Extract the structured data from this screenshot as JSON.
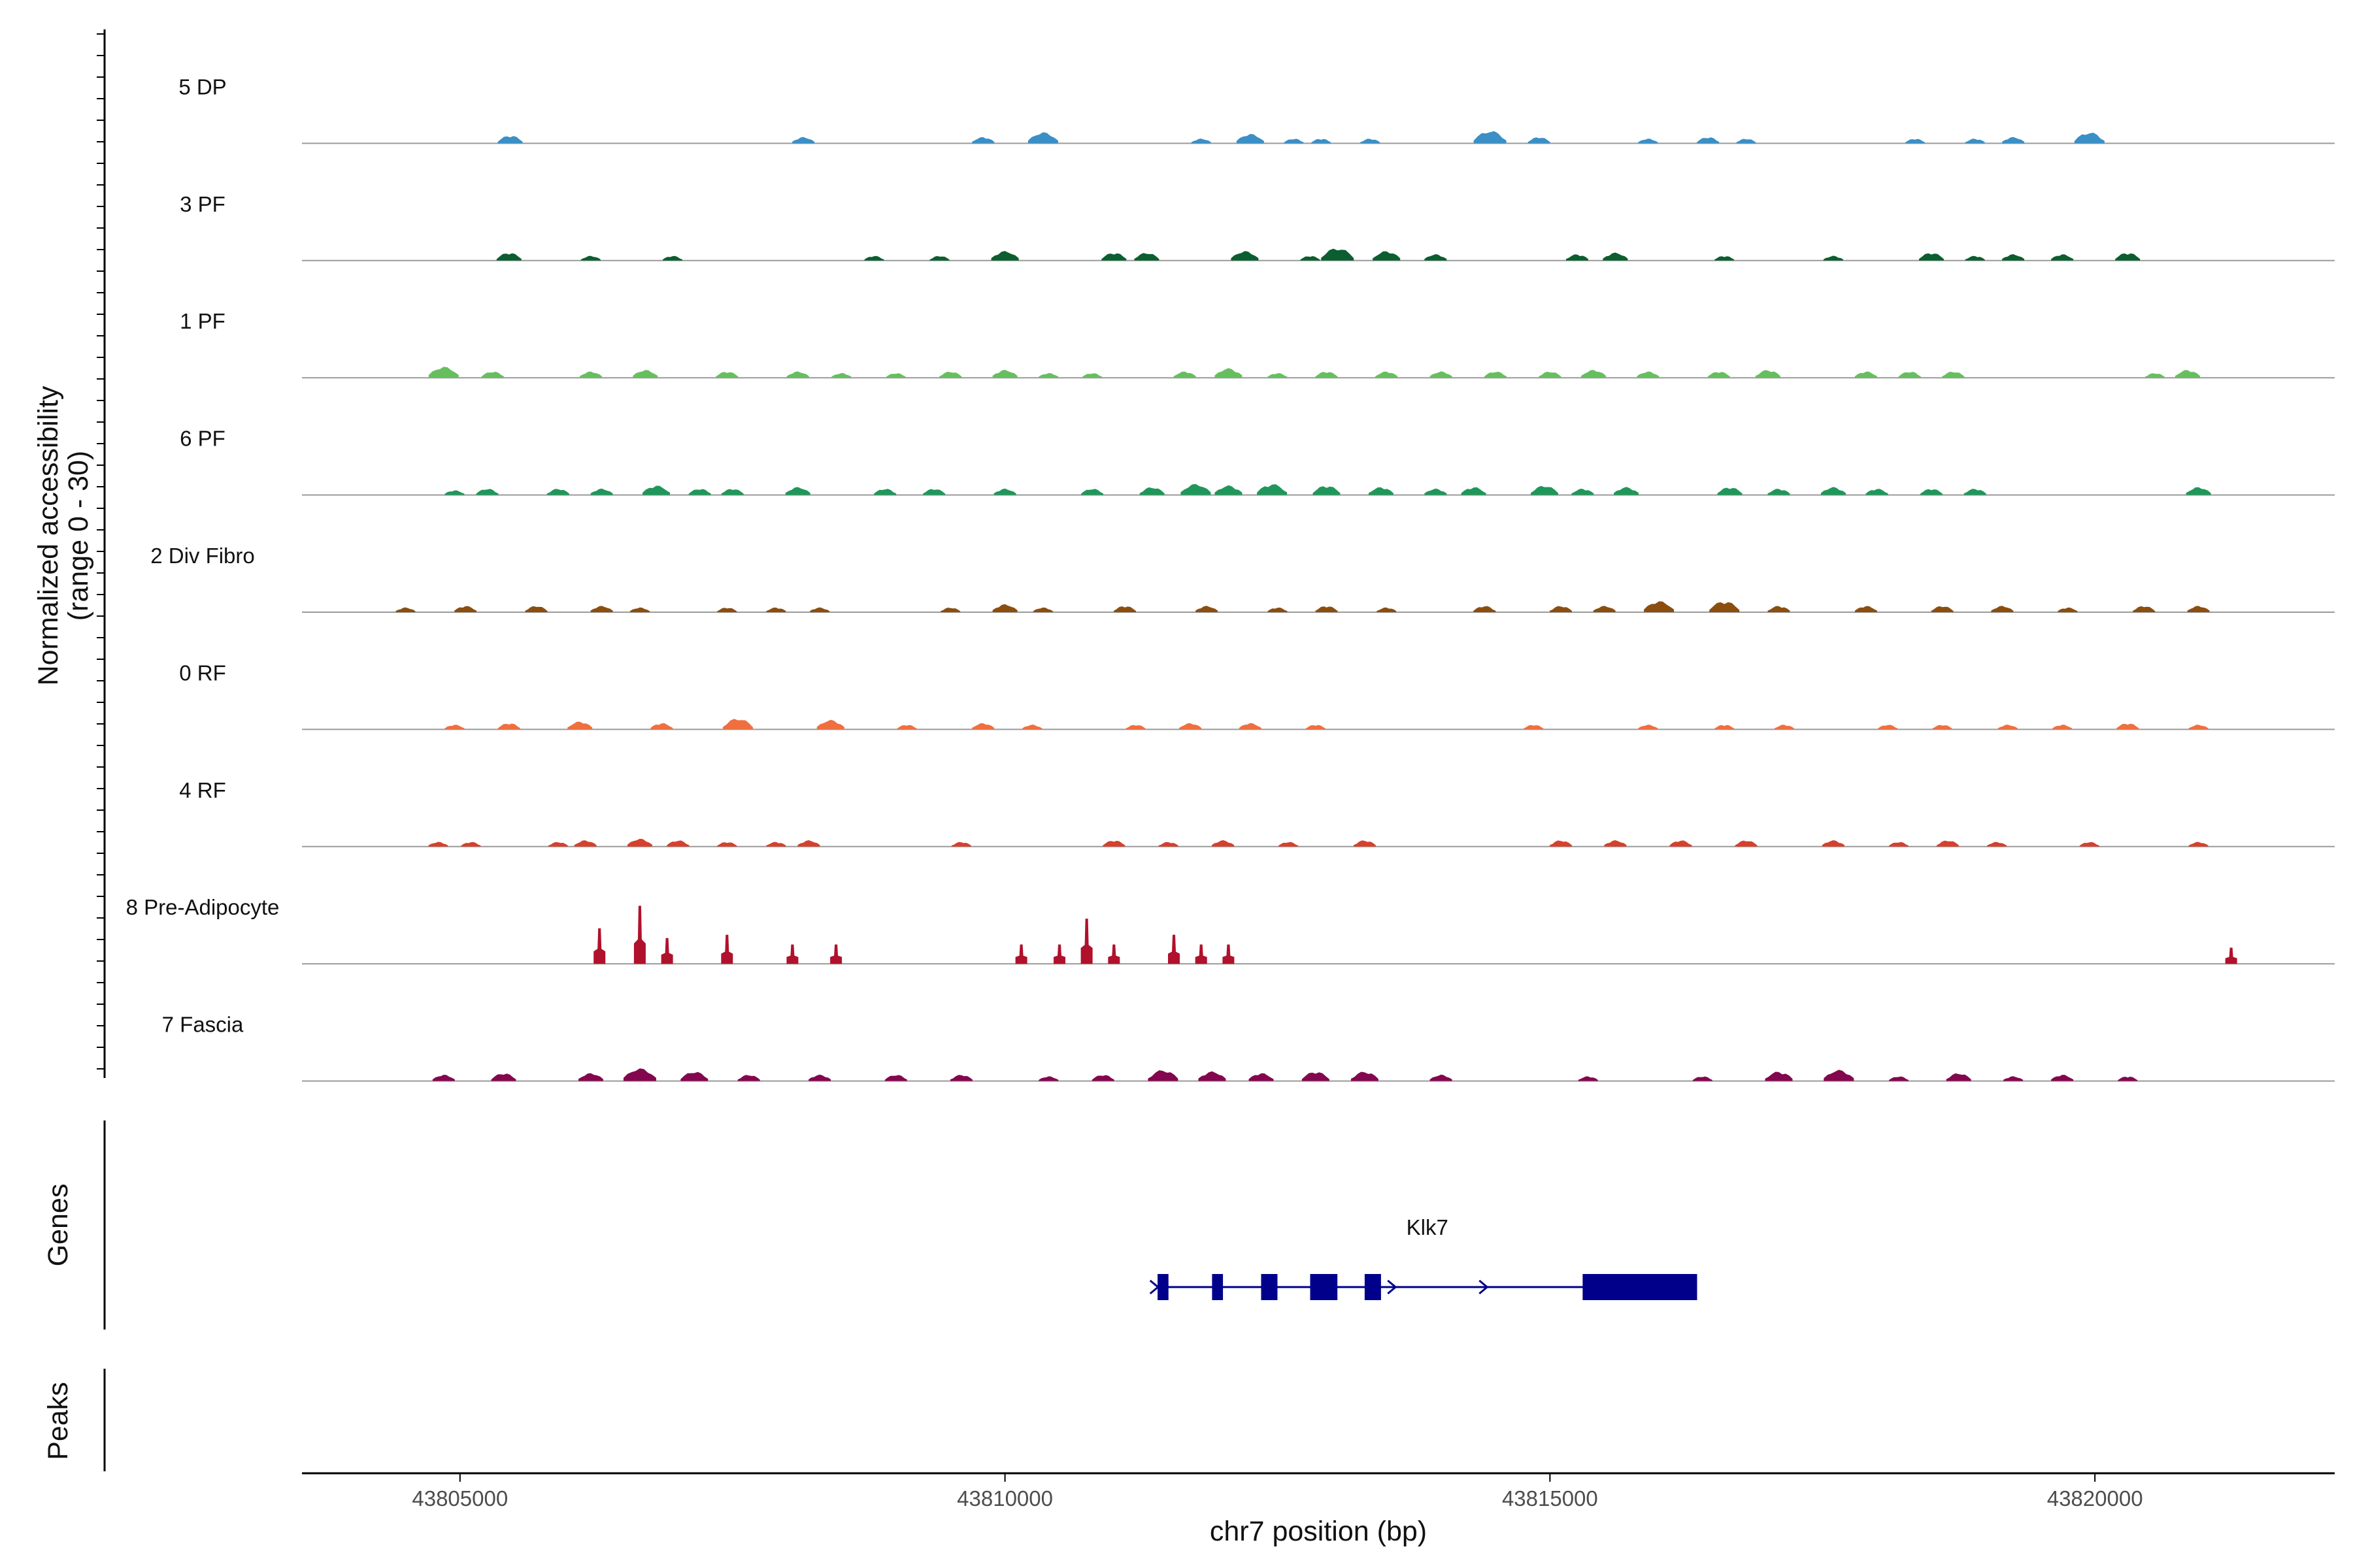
{
  "chart_data": {
    "type": "coverage",
    "ylabel_line1": "Normalized accessibility",
    "ylabel_line2": "(range 0 - 30)",
    "xlabel": "chr7 position (bp)",
    "x_range": [
      43803550,
      43822200
    ],
    "y_range": [
      0,
      30
    ],
    "x_ticks": [
      43805000,
      43810000,
      43815000,
      43820000
    ],
    "x_tick_labels": [
      "43805000",
      "43810000",
      "43815000",
      "43820000"
    ],
    "section_labels": {
      "genes": "Genes",
      "peaks": "Peaks"
    },
    "tracks": [
      {
        "name": "5 DP",
        "color": "#3a8fc6",
        "peaks": [
          [
            43805460,
            2.5
          ],
          [
            43808150,
            2
          ],
          [
            43809800,
            2
          ],
          [
            43810350,
            3.5
          ],
          [
            43811800,
            1.5
          ],
          [
            43812250,
            3
          ],
          [
            43812650,
            1.5
          ],
          [
            43812900,
            1.5
          ],
          [
            43813350,
            1.5
          ],
          [
            43814450,
            4
          ],
          [
            43814900,
            2
          ],
          [
            43815900,
            1.5
          ],
          [
            43816450,
            2
          ],
          [
            43816800,
            1.5
          ],
          [
            43818350,
            1.5
          ],
          [
            43818900,
            1.5
          ],
          [
            43819250,
            2
          ],
          [
            43819950,
            3.5
          ]
        ]
      },
      {
        "name": "3 PF",
        "color": "#0b5e2f",
        "peaks": [
          [
            43805450,
            2.5
          ],
          [
            43806200,
            1.5
          ],
          [
            43806950,
            1.5
          ],
          [
            43808800,
            1.5
          ],
          [
            43809400,
            1.5
          ],
          [
            43810000,
            3
          ],
          [
            43811000,
            2.5
          ],
          [
            43811300,
            2.5
          ],
          [
            43812200,
            3
          ],
          [
            43812800,
            1.5
          ],
          [
            43813050,
            4
          ],
          [
            43813500,
            3
          ],
          [
            43813950,
            2
          ],
          [
            43815250,
            2
          ],
          [
            43815600,
            2.5
          ],
          [
            43816600,
            1.5
          ],
          [
            43817600,
            1.5
          ],
          [
            43818500,
            2.5
          ],
          [
            43818900,
            1.5
          ],
          [
            43819250,
            2
          ],
          [
            43819700,
            2
          ],
          [
            43820300,
            2.5
          ]
        ]
      },
      {
        "name": "1 PF",
        "color": "#66bf5e",
        "peaks": [
          [
            43804850,
            3.5
          ],
          [
            43805300,
            2
          ],
          [
            43806200,
            2
          ],
          [
            43806700,
            2.5
          ],
          [
            43807450,
            2
          ],
          [
            43808100,
            2
          ],
          [
            43808500,
            1.5
          ],
          [
            43809000,
            1.5
          ],
          [
            43809500,
            2
          ],
          [
            43810000,
            2.5
          ],
          [
            43810400,
            1.5
          ],
          [
            43810800,
            1.5
          ],
          [
            43811650,
            2
          ],
          [
            43812050,
            3
          ],
          [
            43812500,
            1.5
          ],
          [
            43812950,
            2
          ],
          [
            43813500,
            2
          ],
          [
            43814000,
            2
          ],
          [
            43814500,
            2
          ],
          [
            43815000,
            2
          ],
          [
            43815400,
            2.5
          ],
          [
            43815900,
            2
          ],
          [
            43816550,
            2
          ],
          [
            43817000,
            2.5
          ],
          [
            43817900,
            2
          ],
          [
            43818300,
            2
          ],
          [
            43818700,
            2
          ],
          [
            43820550,
            1.5
          ],
          [
            43820850,
            2.5
          ]
        ]
      },
      {
        "name": "6 PF",
        "color": "#20975a",
        "peaks": [
          [
            43804950,
            1.5
          ],
          [
            43805250,
            2
          ],
          [
            43805900,
            2
          ],
          [
            43806300,
            2
          ],
          [
            43806800,
            3
          ],
          [
            43807200,
            2
          ],
          [
            43807500,
            2
          ],
          [
            43808100,
            2.5
          ],
          [
            43808900,
            2
          ],
          [
            43809350,
            2
          ],
          [
            43810000,
            2
          ],
          [
            43810800,
            2
          ],
          [
            43811350,
            2.5
          ],
          [
            43811750,
            3.5
          ],
          [
            43812050,
            3
          ],
          [
            43812450,
            3.5
          ],
          [
            43812950,
            3
          ],
          [
            43813450,
            2.5
          ],
          [
            43813950,
            2
          ],
          [
            43814300,
            2.5
          ],
          [
            43814950,
            3
          ],
          [
            43815300,
            2
          ],
          [
            43815700,
            2.5
          ],
          [
            43816650,
            2.5
          ],
          [
            43817100,
            2
          ],
          [
            43817600,
            2.5
          ],
          [
            43818000,
            2
          ],
          [
            43818500,
            2
          ],
          [
            43818900,
            2
          ],
          [
            43820950,
            2.5
          ]
        ]
      },
      {
        "name": "2 Div Fibro",
        "color": "#8b4e0f",
        "peaks": [
          [
            43804500,
            1.5
          ],
          [
            43805050,
            2
          ],
          [
            43805700,
            2
          ],
          [
            43806300,
            2
          ],
          [
            43806650,
            1.5
          ],
          [
            43807450,
            1.5
          ],
          [
            43807900,
            1.5
          ],
          [
            43808300,
            1.5
          ],
          [
            43809500,
            1.5
          ],
          [
            43810000,
            2.5
          ],
          [
            43810350,
            1.5
          ],
          [
            43811100,
            2
          ],
          [
            43811850,
            2
          ],
          [
            43812500,
            1.5
          ],
          [
            43812950,
            2
          ],
          [
            43813500,
            1.5
          ],
          [
            43814400,
            2
          ],
          [
            43815100,
            2
          ],
          [
            43815500,
            2
          ],
          [
            43816000,
            3.5
          ],
          [
            43816600,
            3.5
          ],
          [
            43817100,
            2
          ],
          [
            43817900,
            2
          ],
          [
            43818600,
            2
          ],
          [
            43819150,
            2
          ],
          [
            43819750,
            1.5
          ],
          [
            43820450,
            2
          ],
          [
            43820950,
            2
          ]
        ]
      },
      {
        "name": "0 RF",
        "color": "#ef6f3f",
        "peaks": [
          [
            43804950,
            1.5
          ],
          [
            43805450,
            2
          ],
          [
            43806100,
            2.5
          ],
          [
            43806850,
            2
          ],
          [
            43807550,
            3.5
          ],
          [
            43808400,
            3
          ],
          [
            43809100,
            1.5
          ],
          [
            43809800,
            2
          ],
          [
            43810250,
            1.5
          ],
          [
            43811200,
            1.5
          ],
          [
            43811700,
            2
          ],
          [
            43812250,
            2
          ],
          [
            43812850,
            1.5
          ],
          [
            43814850,
            1.5
          ],
          [
            43815900,
            1.5
          ],
          [
            43816600,
            1.5
          ],
          [
            43817150,
            1.5
          ],
          [
            43818100,
            1.5
          ],
          [
            43818600,
            1.5
          ],
          [
            43819200,
            1.5
          ],
          [
            43819700,
            1.5
          ],
          [
            43820300,
            2
          ],
          [
            43820950,
            1.5
          ]
        ]
      },
      {
        "name": "4 RF",
        "color": "#d6402c",
        "peaks": [
          [
            43804800,
            1.5
          ],
          [
            43805100,
            1.5
          ],
          [
            43805900,
            1.5
          ],
          [
            43806150,
            2
          ],
          [
            43806650,
            2.5
          ],
          [
            43807000,
            2
          ],
          [
            43807450,
            1.5
          ],
          [
            43807900,
            1.5
          ],
          [
            43808200,
            2
          ],
          [
            43809600,
            1.5
          ],
          [
            43811000,
            2
          ],
          [
            43811500,
            1.5
          ],
          [
            43812000,
            2
          ],
          [
            43812600,
            1.5
          ],
          [
            43813300,
            2
          ],
          [
            43815100,
            2
          ],
          [
            43815600,
            2
          ],
          [
            43816200,
            2
          ],
          [
            43816800,
            2
          ],
          [
            43817600,
            2
          ],
          [
            43818200,
            1.5
          ],
          [
            43818650,
            2
          ],
          [
            43819100,
            1.5
          ],
          [
            43819950,
            1.5
          ],
          [
            43820950,
            1.5
          ]
        ]
      },
      {
        "name": "8 Pre-Adipocyte",
        "color": "#b0112c",
        "peaks": [
          [
            43806280,
            11
          ],
          [
            43806650,
            18
          ],
          [
            43806900,
            8
          ],
          [
            43807450,
            9
          ],
          [
            43808050,
            6
          ],
          [
            43808450,
            6
          ],
          [
            43810150,
            6
          ],
          [
            43810500,
            6
          ],
          [
            43810750,
            14
          ],
          [
            43811000,
            6
          ],
          [
            43811550,
            9
          ],
          [
            43811800,
            6
          ],
          [
            43812050,
            6
          ],
          [
            43821250,
            5
          ]
        ]
      },
      {
        "name": "7 Fascia",
        "color": "#84064e",
        "peaks": [
          [
            43804850,
            2
          ],
          [
            43805400,
            2.5
          ],
          [
            43806200,
            2.5
          ],
          [
            43806650,
            4
          ],
          [
            43807150,
            3
          ],
          [
            43807650,
            2
          ],
          [
            43808300,
            2
          ],
          [
            43809000,
            2
          ],
          [
            43809600,
            2
          ],
          [
            43810400,
            1.5
          ],
          [
            43810900,
            2
          ],
          [
            43811450,
            3.5
          ],
          [
            43811900,
            3
          ],
          [
            43812350,
            2.5
          ],
          [
            43812850,
            3
          ],
          [
            43813300,
            3
          ],
          [
            43814000,
            2
          ],
          [
            43815350,
            1.5
          ],
          [
            43816400,
            1.5
          ],
          [
            43817100,
            3
          ],
          [
            43817650,
            3.5
          ],
          [
            43818200,
            1.5
          ],
          [
            43818750,
            2.5
          ],
          [
            43819250,
            1.5
          ],
          [
            43819700,
            2
          ],
          [
            43820300,
            1.5
          ]
        ]
      }
    ],
    "gene": {
      "name": "Klk7",
      "start": 43811400,
      "end": 43816350,
      "strand": "+",
      "exons": [
        [
          43811400,
          43811500
        ],
        [
          43811900,
          43812000
        ],
        [
          43812350,
          43812500
        ],
        [
          43812800,
          43813050
        ],
        [
          43813300,
          43813450
        ],
        [
          43815300,
          43816350
        ]
      ]
    },
    "peaks_track": []
  }
}
